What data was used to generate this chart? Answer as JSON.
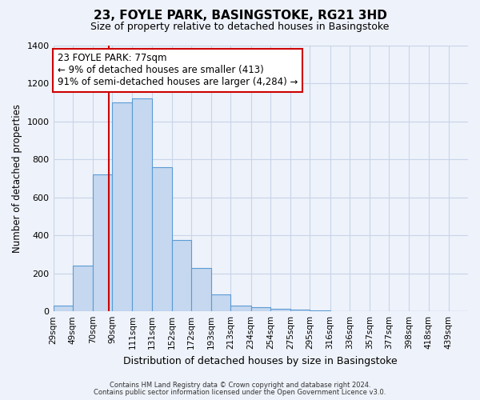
{
  "title": "23, FOYLE PARK, BASINGSTOKE, RG21 3HD",
  "subtitle": "Size of property relative to detached houses in Basingstoke",
  "xlabel": "Distribution of detached houses by size in Basingstoke",
  "ylabel": "Number of detached properties",
  "bin_labels": [
    "29sqm",
    "49sqm",
    "70sqm",
    "90sqm",
    "111sqm",
    "131sqm",
    "152sqm",
    "172sqm",
    "193sqm",
    "213sqm",
    "234sqm",
    "254sqm",
    "275sqm",
    "295sqm",
    "316sqm",
    "336sqm",
    "357sqm",
    "377sqm",
    "398sqm",
    "418sqm",
    "439sqm"
  ],
  "bar_heights": [
    30,
    240,
    720,
    1100,
    1120,
    760,
    375,
    230,
    90,
    30,
    20,
    15,
    10,
    5,
    0,
    0,
    0,
    0,
    0,
    0,
    0
  ],
  "bar_color": "#c5d8ef",
  "bar_edge_color": "#5b9bd5",
  "vline_x": 77,
  "vline_color": "#cc0000",
  "annotation_line1": "23 FOYLE PARK: 77sqm",
  "annotation_line2": "← 9% of detached houses are smaller (413)",
  "annotation_line3": "91% of semi-detached houses are larger (4,284) →",
  "annotation_box_color": "#ffffff",
  "annotation_box_edge": "#cc0000",
  "ylim": [
    0,
    1400
  ],
  "yticks": [
    0,
    200,
    400,
    600,
    800,
    1000,
    1200,
    1400
  ],
  "grid_color": "#c8d4e8",
  "background_color": "#eef2fa",
  "footer_line1": "Contains HM Land Registry data © Crown copyright and database right 2024.",
  "footer_line2": "Contains public sector information licensed under the Open Government Licence v3.0.",
  "bin_edges": [
    19,
    39,
    60,
    80,
    101,
    121,
    142,
    162,
    183,
    203,
    224,
    244,
    265,
    285,
    306,
    326,
    347,
    367,
    388,
    408,
    429,
    449
  ]
}
